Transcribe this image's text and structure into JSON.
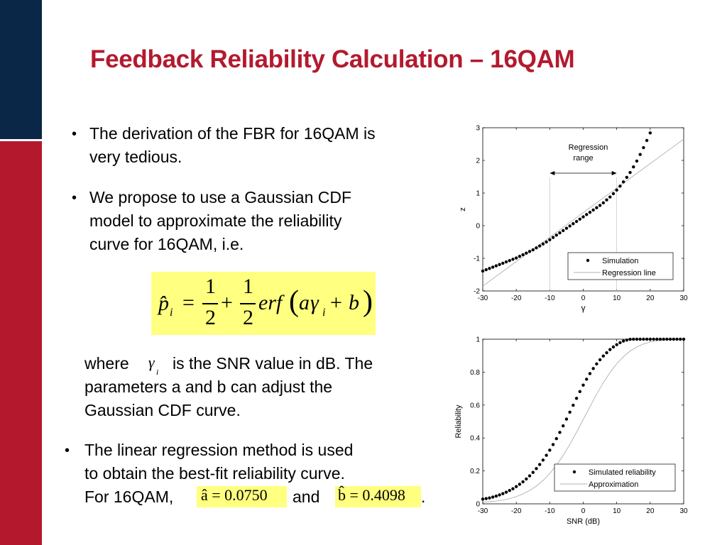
{
  "slide": {
    "title": "Feedback Reliability Calculation – 16QAM",
    "accent_navy": "#0b2748",
    "accent_red": "#b4182d",
    "title_color": "#b31a2e",
    "highlight": "#ffff80"
  },
  "bullets": [
    {
      "lines": [
        "The derivation of the FBR for 16QAM is",
        "very tedious."
      ]
    },
    {
      "lines": [
        "We propose to use a Gaussian CDF",
        "model to approximate the reliability",
        "curve for 16QAM, i.e."
      ]
    }
  ],
  "equation": {
    "lhs": "p̂",
    "lhs_sub": "i",
    "eq": "=",
    "one": "1",
    "two": "2",
    "plus": "+",
    "erf": "erf",
    "paren_open": "(",
    "a": "a",
    "gamma": "γ",
    "gamma_sub": "i",
    "b": "b",
    "paren_close": ")"
  },
  "where": {
    "w1": "where",
    "gamma": "γ",
    "gamma_sub": "i",
    "w1b": "is the SNR value in dB. The",
    "w2": "parameters a and b can adjust the",
    "w3": "Gaussian CDF curve."
  },
  "bullet3": {
    "l1": "The linear regression method is used",
    "l2": "to obtain the best-fit reliability curve.",
    "l3a": "For 16QAM,",
    "a_hat": "â = 0.0750",
    "and": "and",
    "b_hat": "b̂ = 0.4098",
    "period": "."
  },
  "chart_data": [
    {
      "type": "scatter",
      "title": "",
      "xlabel": "γ",
      "ylabel": "z",
      "xlim": [
        -30,
        30
      ],
      "ylim": [
        -2,
        3
      ],
      "xticks": [
        "-30",
        "-20",
        "-10",
        "0",
        "10",
        "20",
        "30"
      ],
      "yticks": [
        "-2",
        "-1",
        "0",
        "1",
        "2",
        "3"
      ],
      "annotation": [
        "Regression",
        "range"
      ],
      "regression_range": [
        -10,
        10
      ],
      "legend": {
        "position": "bottom-right",
        "entries": [
          "Simulation",
          "Regression line"
        ]
      },
      "series": [
        {
          "name": "Simulation",
          "kind": "points",
          "x": [
            -30,
            -29,
            -28,
            -27,
            -26,
            -25,
            -24,
            -23,
            -22,
            -21,
            -20,
            -19,
            -18,
            -17,
            -16,
            -15,
            -14,
            -13,
            -12,
            -11,
            -10,
            -9,
            -8,
            -7,
            -6,
            -5,
            -4,
            -3,
            -2,
            -1,
            0,
            1,
            2,
            3,
            4,
            5,
            6,
            7,
            8,
            9,
            10,
            11,
            12,
            13,
            14,
            15,
            16,
            17,
            18,
            19,
            20
          ],
          "y": [
            -1.39,
            -1.35,
            -1.31,
            -1.27,
            -1.23,
            -1.19,
            -1.15,
            -1.11,
            -1.07,
            -1.03,
            -0.99,
            -0.94,
            -0.89,
            -0.84,
            -0.79,
            -0.74,
            -0.68,
            -0.62,
            -0.56,
            -0.5,
            -0.43,
            -0.36,
            -0.29,
            -0.22,
            -0.15,
            -0.08,
            -0.01,
            0.06,
            0.13,
            0.2,
            0.27,
            0.34,
            0.41,
            0.48,
            0.55,
            0.62,
            0.7,
            0.79,
            0.88,
            0.98,
            1.09,
            1.21,
            1.34,
            1.48,
            1.63,
            1.8,
            1.98,
            2.18,
            2.39,
            2.61,
            2.84
          ]
        },
        {
          "name": "Regression line",
          "kind": "line",
          "x": [
            -30,
            30
          ],
          "y": [
            -1.85,
            2.65
          ]
        }
      ]
    },
    {
      "type": "scatter",
      "title": "",
      "xlabel": "SNR (dB)",
      "ylabel": "Reliability",
      "xlim": [
        -30,
        30
      ],
      "ylim": [
        0,
        1
      ],
      "xticks": [
        "-30",
        "-20",
        "-10",
        "0",
        "10",
        "20",
        "30"
      ],
      "yticks": [
        "0",
        "0.2",
        "0.4",
        "0.6",
        "0.8",
        "1"
      ],
      "legend": {
        "position": "bottom-right",
        "entries": [
          "Simulated reliability",
          "Approximation"
        ]
      },
      "series": [
        {
          "name": "Simulated reliability",
          "kind": "points",
          "x": [
            -30,
            -29,
            -28,
            -27,
            -26,
            -25,
            -24,
            -23,
            -22,
            -21,
            -20,
            -19,
            -18,
            -17,
            -16,
            -15,
            -14,
            -13,
            -12,
            -11,
            -10,
            -9,
            -8,
            -7,
            -6,
            -5,
            -4,
            -3,
            -2,
            -1,
            0,
            1,
            2,
            3,
            4,
            5,
            6,
            7,
            8,
            9,
            10,
            11,
            12,
            13,
            14,
            15,
            16,
            17,
            18,
            19,
            20,
            21,
            22,
            23,
            24,
            25,
            26,
            27,
            28,
            29,
            30
          ],
          "y": [
            0.029,
            0.032,
            0.036,
            0.041,
            0.047,
            0.054,
            0.062,
            0.071,
            0.081,
            0.092,
            0.105,
            0.119,
            0.134,
            0.151,
            0.17,
            0.191,
            0.214,
            0.239,
            0.266,
            0.295,
            0.326,
            0.36,
            0.396,
            0.434,
            0.474,
            0.515,
            0.557,
            0.599,
            0.641,
            0.682,
            0.721,
            0.757,
            0.791,
            0.822,
            0.85,
            0.875,
            0.898,
            0.918,
            0.937,
            0.953,
            0.967,
            0.979,
            0.989,
            0.995,
            0.999,
            1,
            1,
            1,
            1,
            1,
            1,
            1,
            1,
            1,
            1,
            1,
            1,
            1,
            1,
            1,
            1
          ]
        },
        {
          "name": "Approximation",
          "kind": "line",
          "x": [
            -30,
            -28,
            -26,
            -24,
            -22,
            -20,
            -18,
            -16,
            -14,
            -12,
            -10,
            -8,
            -6,
            -4,
            -2,
            0,
            2,
            4,
            6,
            8,
            10,
            12,
            14,
            16,
            18,
            20,
            22,
            24,
            26,
            28,
            30
          ],
          "y": [
            0.01,
            0.013,
            0.017,
            0.023,
            0.032,
            0.044,
            0.06,
            0.081,
            0.108,
            0.142,
            0.184,
            0.235,
            0.294,
            0.361,
            0.435,
            0.512,
            0.59,
            0.666,
            0.736,
            0.798,
            0.851,
            0.894,
            0.928,
            0.953,
            0.971,
            0.983,
            0.99,
            0.995,
            0.997,
            0.999,
            1.0
          ]
        }
      ]
    }
  ]
}
